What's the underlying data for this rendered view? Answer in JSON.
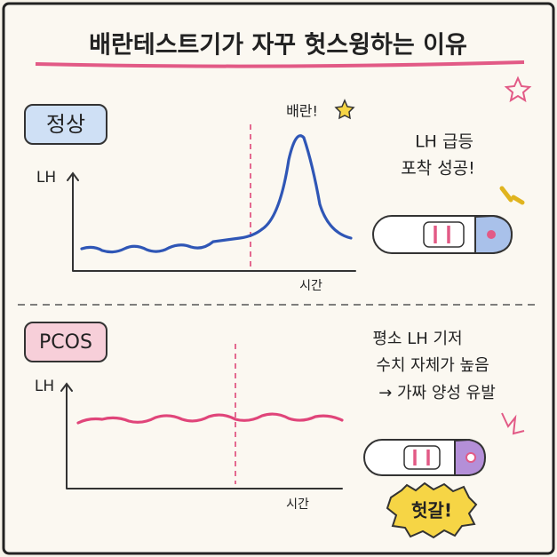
{
  "title": "배란테스트기가 자꾸 헛스윙하는 이유",
  "normal": {
    "label": "정상",
    "y_label": "LH",
    "x_label": "시간",
    "peak_note": "배란!",
    "note": [
      "LH 급등",
      "포착 성공!"
    ]
  },
  "pcos": {
    "label": "PCOS",
    "y_label": "LH",
    "x_label": "시간",
    "note": [
      "평소 LH 기저",
      "수치 자체가 높음",
      "→ 가짜 양성 유발"
    ],
    "badge": "헛갈!"
  }
}
